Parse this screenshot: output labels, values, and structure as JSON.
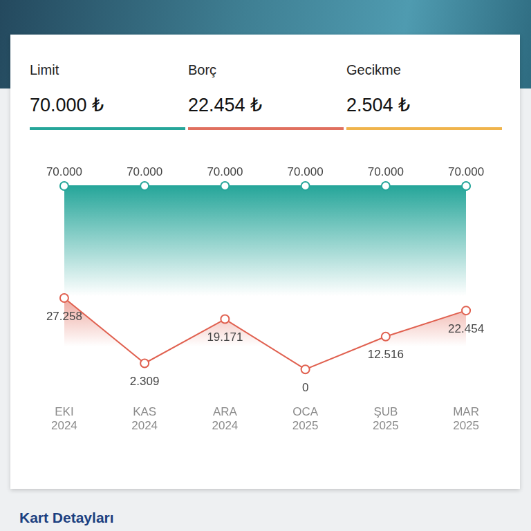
{
  "header": [
    {
      "label": "Limit",
      "value": "70.000 ₺",
      "color": "#26a69a"
    },
    {
      "label": "Borç",
      "value": "22.454 ₺",
      "color": "#e0705f"
    },
    {
      "label": "Gecikme",
      "value": "2.504 ₺",
      "color": "#f0b44c"
    }
  ],
  "chart_data": {
    "type": "line",
    "categories": [
      "EKI 2024",
      "KAS 2024",
      "ARA 2024",
      "OCA 2025",
      "ŞUB 2025",
      "MAR 2025"
    ],
    "series": [
      {
        "name": "Limit",
        "color": "#26a69a",
        "values": [
          70000,
          70000,
          70000,
          70000,
          70000,
          70000
        ],
        "value_labels": [
          "70.000",
          "70.000",
          "70.000",
          "70.000",
          "70.000",
          "70.000"
        ]
      },
      {
        "name": "Borç",
        "color": "#e0604f",
        "values": [
          27258,
          2309,
          19171,
          0,
          12516,
          22454
        ],
        "value_labels": [
          "27.258",
          "2.309",
          "19.171",
          "0",
          "12.516",
          "22.454"
        ]
      }
    ],
    "ylim": [
      0,
      70000
    ],
    "data_labels": true,
    "tick_labels": "x",
    "grid": false,
    "marker": "circle"
  },
  "footer": {
    "title": "Kart Detayları"
  }
}
